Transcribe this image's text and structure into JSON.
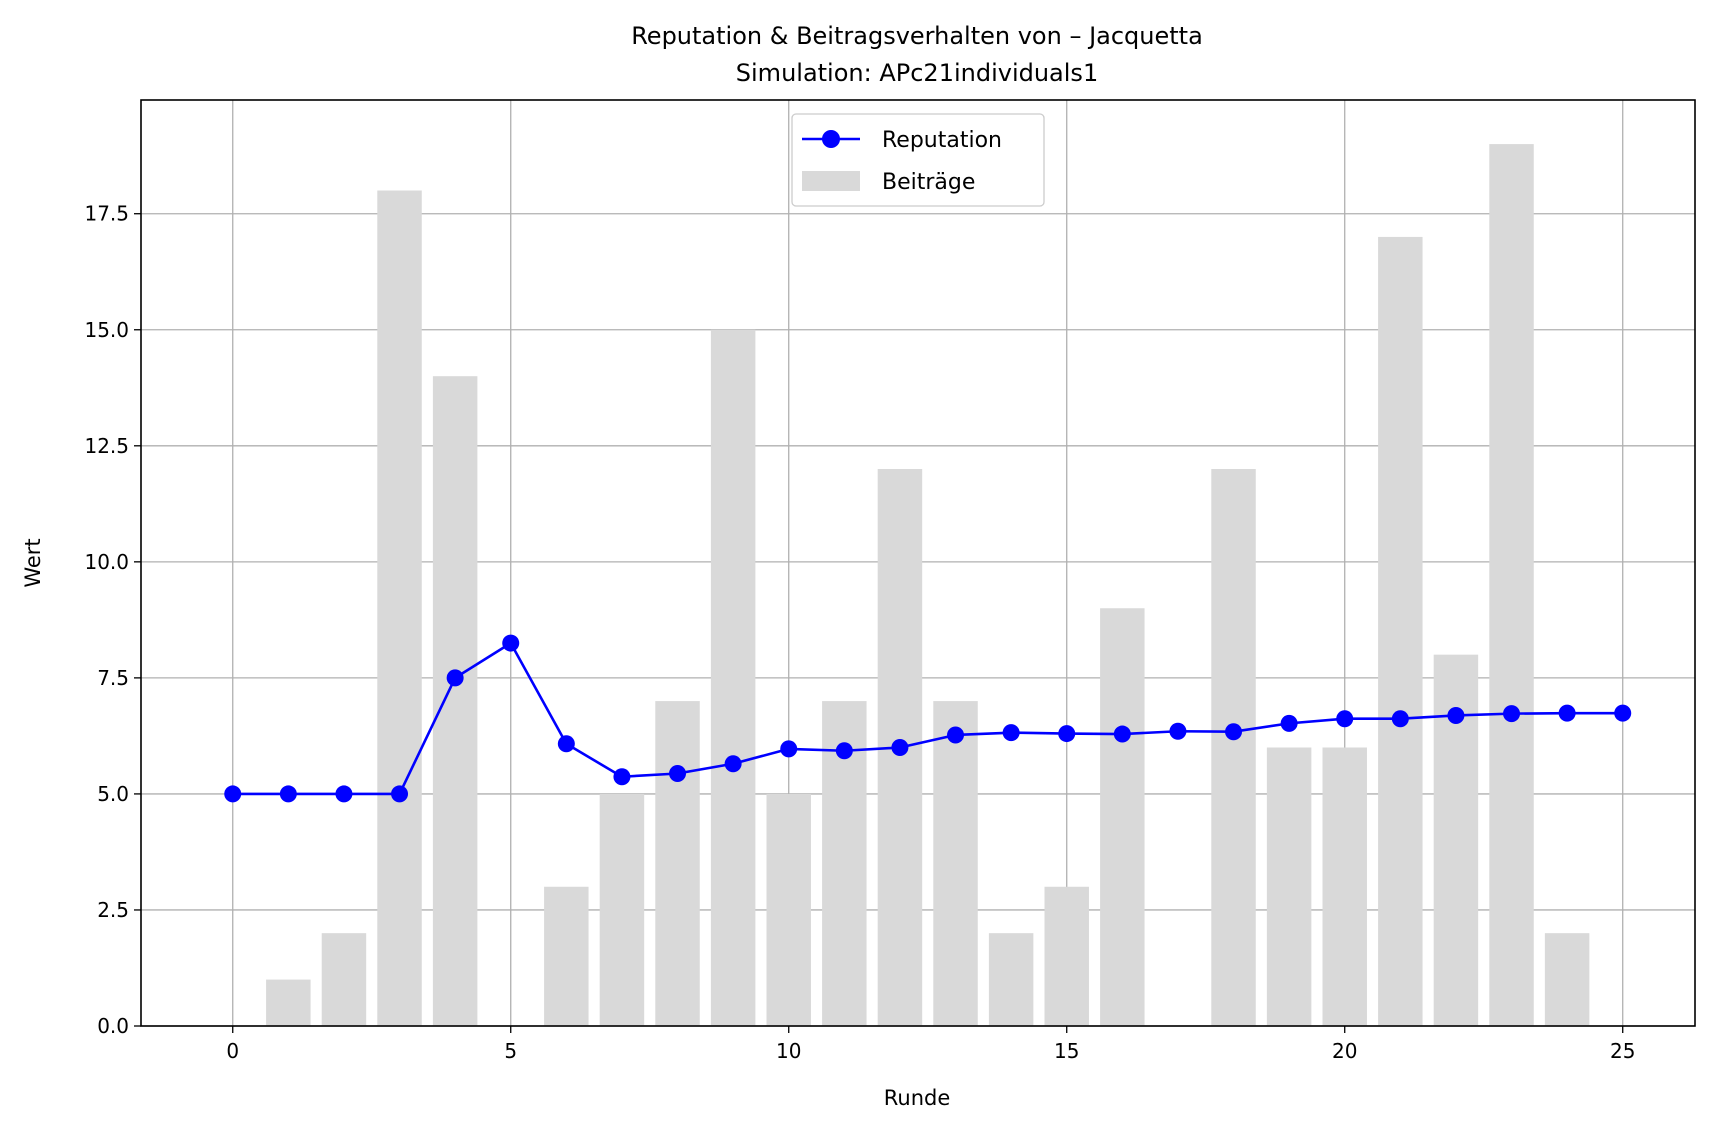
{
  "chart_data": {
    "type": "bar+line",
    "title": "Reputation & Beitragsverhalten von – Jacquetta",
    "subtitle": "Simulation: APc21individuals1",
    "xlabel": "Runde",
    "ylabel": "Wert",
    "xlim": [
      -1.65,
      26.3
    ],
    "ylim": [
      0,
      19.95
    ],
    "x_ticks": [
      0,
      5,
      10,
      15,
      20,
      25
    ],
    "x_tick_labels": [
      "0",
      "5",
      "10",
      "15",
      "20",
      "25"
    ],
    "y_ticks": [
      0,
      2.5,
      5,
      7.5,
      10,
      12.5,
      15,
      17.5
    ],
    "y_tick_labels": [
      "0.0",
      "2.5",
      "5.0",
      "7.5",
      "10.0",
      "12.5",
      "15.0",
      "17.5"
    ],
    "grid": true,
    "legend_position": "top-center",
    "rounds": [
      0,
      1,
      2,
      3,
      4,
      5,
      6,
      7,
      8,
      9,
      10,
      11,
      12,
      13,
      14,
      15,
      16,
      17,
      18,
      19,
      20,
      21,
      22,
      23,
      24,
      25
    ],
    "series": [
      {
        "name": "Reputation",
        "kind": "line",
        "color": "#0000ff",
        "marker": "circle",
        "values": [
          5.0,
          5.0,
          5.0,
          5.0,
          7.5,
          8.25,
          6.08,
          5.37,
          5.44,
          5.65,
          5.97,
          5.93,
          6.0,
          6.27,
          6.32,
          6.3,
          6.29,
          6.35,
          6.34,
          6.52,
          6.62,
          6.62,
          6.69,
          6.73,
          6.74,
          6.74
        ]
      },
      {
        "name": "Beiträge",
        "kind": "bar",
        "color": "#d9d9d9",
        "values": [
          0,
          1,
          2,
          18,
          14,
          0,
          3,
          5,
          7,
          15,
          5,
          7,
          12,
          7,
          2,
          3,
          9,
          0,
          12,
          6,
          6,
          17,
          8,
          19,
          2,
          0
        ]
      }
    ]
  }
}
